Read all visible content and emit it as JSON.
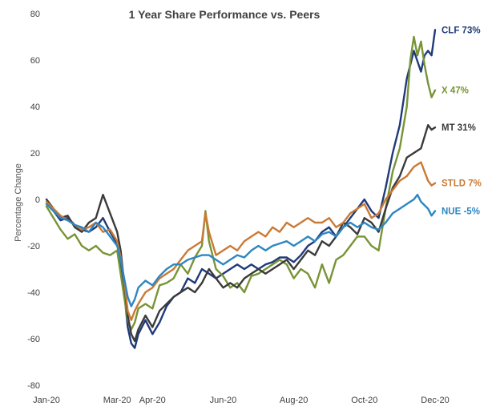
{
  "chart_data": {
    "type": "line",
    "title": "1 Year Share Performance vs. Peers",
    "xlabel": "",
    "ylabel": "Percentage Change",
    "ylim": [
      -80,
      80
    ],
    "yticks": [
      -80,
      -60,
      -40,
      -20,
      0,
      20,
      40,
      60,
      80
    ],
    "xlim": [
      0,
      11
    ],
    "xtick_labels": [
      {
        "x": 0,
        "label": "Jan-20"
      },
      {
        "x": 2,
        "label": "Mar-20"
      },
      {
        "x": 3,
        "label": "Apr-20"
      },
      {
        "x": 5,
        "label": "Jun-20"
      },
      {
        "x": 7,
        "label": "Aug-20"
      },
      {
        "x": 9,
        "label": "Oct-20"
      },
      {
        "x": 11,
        "label": "Dec-20"
      }
    ],
    "grid": false,
    "legend": "none",
    "series": [
      {
        "name": "CLF",
        "end_label": "CLF 73%",
        "color": "#1f3a7a",
        "points": [
          [
            0,
            -2
          ],
          [
            0.2,
            -5
          ],
          [
            0.4,
            -9
          ],
          [
            0.6,
            -8
          ],
          [
            0.8,
            -11
          ],
          [
            1.0,
            -13
          ],
          [
            1.2,
            -14
          ],
          [
            1.4,
            -12
          ],
          [
            1.6,
            -8
          ],
          [
            1.8,
            -14
          ],
          [
            2.0,
            -19
          ],
          [
            2.1,
            -28
          ],
          [
            2.2,
            -40
          ],
          [
            2.3,
            -55
          ],
          [
            2.4,
            -62
          ],
          [
            2.5,
            -64
          ],
          [
            2.6,
            -58
          ],
          [
            2.8,
            -52
          ],
          [
            3.0,
            -58
          ],
          [
            3.2,
            -53
          ],
          [
            3.4,
            -46
          ],
          [
            3.6,
            -42
          ],
          [
            3.8,
            -40
          ],
          [
            4.0,
            -34
          ],
          [
            4.2,
            -36
          ],
          [
            4.4,
            -30
          ],
          [
            4.6,
            -32
          ],
          [
            4.8,
            -34
          ],
          [
            5.0,
            -32
          ],
          [
            5.2,
            -30
          ],
          [
            5.4,
            -28
          ],
          [
            5.6,
            -30
          ],
          [
            5.8,
            -28
          ],
          [
            6.0,
            -30
          ],
          [
            6.2,
            -28
          ],
          [
            6.4,
            -27
          ],
          [
            6.6,
            -25
          ],
          [
            6.8,
            -25
          ],
          [
            7.0,
            -27
          ],
          [
            7.2,
            -24
          ],
          [
            7.4,
            -20
          ],
          [
            7.6,
            -18
          ],
          [
            7.8,
            -14
          ],
          [
            8.0,
            -12
          ],
          [
            8.2,
            -16
          ],
          [
            8.4,
            -12
          ],
          [
            8.6,
            -8
          ],
          [
            8.8,
            -4
          ],
          [
            9.0,
            0
          ],
          [
            9.2,
            -5
          ],
          [
            9.4,
            -8
          ],
          [
            9.6,
            5
          ],
          [
            9.8,
            20
          ],
          [
            10.0,
            32
          ],
          [
            10.2,
            52
          ],
          [
            10.4,
            64
          ],
          [
            10.6,
            55
          ],
          [
            10.7,
            62
          ],
          [
            10.8,
            64
          ],
          [
            10.9,
            62
          ],
          [
            11.0,
            73
          ]
        ]
      },
      {
        "name": "X",
        "end_label": "X 47%",
        "color": "#789435",
        "points": [
          [
            0,
            -3
          ],
          [
            0.2,
            -8
          ],
          [
            0.4,
            -13
          ],
          [
            0.6,
            -17
          ],
          [
            0.8,
            -15
          ],
          [
            1.0,
            -20
          ],
          [
            1.2,
            -22
          ],
          [
            1.4,
            -20
          ],
          [
            1.6,
            -23
          ],
          [
            1.8,
            -24
          ],
          [
            2.0,
            -22
          ],
          [
            2.1,
            -32
          ],
          [
            2.2,
            -42
          ],
          [
            2.3,
            -52
          ],
          [
            2.4,
            -56
          ],
          [
            2.5,
            -53
          ],
          [
            2.6,
            -47
          ],
          [
            2.8,
            -45
          ],
          [
            3.0,
            -47
          ],
          [
            3.2,
            -37
          ],
          [
            3.4,
            -36
          ],
          [
            3.6,
            -34
          ],
          [
            3.8,
            -28
          ],
          [
            4.0,
            -32
          ],
          [
            4.2,
            -25
          ],
          [
            4.4,
            -20
          ],
          [
            4.5,
            -5
          ],
          [
            4.6,
            -18
          ],
          [
            4.8,
            -30
          ],
          [
            5.0,
            -33
          ],
          [
            5.2,
            -38
          ],
          [
            5.4,
            -36
          ],
          [
            5.6,
            -40
          ],
          [
            5.8,
            -33
          ],
          [
            6.0,
            -32
          ],
          [
            6.2,
            -30
          ],
          [
            6.4,
            -28
          ],
          [
            6.6,
            -26
          ],
          [
            6.8,
            -28
          ],
          [
            7.0,
            -34
          ],
          [
            7.2,
            -30
          ],
          [
            7.4,
            -32
          ],
          [
            7.6,
            -38
          ],
          [
            7.8,
            -28
          ],
          [
            8.0,
            -36
          ],
          [
            8.2,
            -26
          ],
          [
            8.4,
            -24
          ],
          [
            8.6,
            -20
          ],
          [
            8.8,
            -16
          ],
          [
            9.0,
            -16
          ],
          [
            9.2,
            -20
          ],
          [
            9.4,
            -22
          ],
          [
            9.6,
            -4
          ],
          [
            9.8,
            12
          ],
          [
            10.0,
            22
          ],
          [
            10.2,
            40
          ],
          [
            10.3,
            60
          ],
          [
            10.4,
            70
          ],
          [
            10.5,
            62
          ],
          [
            10.6,
            68
          ],
          [
            10.7,
            58
          ],
          [
            10.8,
            50
          ],
          [
            10.9,
            44
          ],
          [
            11.0,
            47
          ]
        ]
      },
      {
        "name": "MT",
        "end_label": "MT 31%",
        "color": "#3a3a3a",
        "points": [
          [
            0,
            0
          ],
          [
            0.2,
            -4
          ],
          [
            0.4,
            -8
          ],
          [
            0.6,
            -7
          ],
          [
            0.8,
            -12
          ],
          [
            1.0,
            -14
          ],
          [
            1.2,
            -10
          ],
          [
            1.4,
            -8
          ],
          [
            1.6,
            2
          ],
          [
            1.8,
            -6
          ],
          [
            2.0,
            -14
          ],
          [
            2.1,
            -22
          ],
          [
            2.2,
            -36
          ],
          [
            2.3,
            -50
          ],
          [
            2.4,
            -58
          ],
          [
            2.5,
            -61
          ],
          [
            2.6,
            -56
          ],
          [
            2.8,
            -50
          ],
          [
            3.0,
            -55
          ],
          [
            3.2,
            -48
          ],
          [
            3.4,
            -45
          ],
          [
            3.6,
            -42
          ],
          [
            3.8,
            -40
          ],
          [
            4.0,
            -38
          ],
          [
            4.2,
            -40
          ],
          [
            4.4,
            -36
          ],
          [
            4.6,
            -30
          ],
          [
            4.8,
            -34
          ],
          [
            5.0,
            -38
          ],
          [
            5.2,
            -36
          ],
          [
            5.4,
            -38
          ],
          [
            5.6,
            -34
          ],
          [
            5.8,
            -32
          ],
          [
            6.0,
            -30
          ],
          [
            6.2,
            -32
          ],
          [
            6.4,
            -30
          ],
          [
            6.6,
            -28
          ],
          [
            6.8,
            -26
          ],
          [
            7.0,
            -30
          ],
          [
            7.2,
            -26
          ],
          [
            7.4,
            -22
          ],
          [
            7.6,
            -24
          ],
          [
            7.8,
            -18
          ],
          [
            8.0,
            -20
          ],
          [
            8.2,
            -16
          ],
          [
            8.4,
            -10
          ],
          [
            8.6,
            -12
          ],
          [
            8.8,
            -15
          ],
          [
            9.0,
            -8
          ],
          [
            9.2,
            -10
          ],
          [
            9.4,
            -14
          ],
          [
            9.6,
            -4
          ],
          [
            9.8,
            5
          ],
          [
            10.0,
            10
          ],
          [
            10.2,
            18
          ],
          [
            10.4,
            20
          ],
          [
            10.6,
            22
          ],
          [
            10.8,
            32
          ],
          [
            10.9,
            30
          ],
          [
            11.0,
            31
          ]
        ]
      },
      {
        "name": "STLD",
        "end_label": "STLD 7%",
        "color": "#c97a35",
        "points": [
          [
            0,
            -1
          ],
          [
            0.2,
            -4
          ],
          [
            0.4,
            -7
          ],
          [
            0.6,
            -9
          ],
          [
            0.8,
            -11
          ],
          [
            1.0,
            -13
          ],
          [
            1.2,
            -12
          ],
          [
            1.4,
            -10
          ],
          [
            1.6,
            -14
          ],
          [
            1.8,
            -13
          ],
          [
            2.0,
            -18
          ],
          [
            2.1,
            -25
          ],
          [
            2.2,
            -35
          ],
          [
            2.3,
            -48
          ],
          [
            2.4,
            -52
          ],
          [
            2.5,
            -48
          ],
          [
            2.6,
            -45
          ],
          [
            2.8,
            -40
          ],
          [
            3.0,
            -38
          ],
          [
            3.2,
            -34
          ],
          [
            3.4,
            -32
          ],
          [
            3.6,
            -30
          ],
          [
            3.8,
            -26
          ],
          [
            4.0,
            -22
          ],
          [
            4.2,
            -20
          ],
          [
            4.4,
            -18
          ],
          [
            4.5,
            -6
          ],
          [
            4.6,
            -14
          ],
          [
            4.8,
            -24
          ],
          [
            5.0,
            -22
          ],
          [
            5.2,
            -20
          ],
          [
            5.4,
            -22
          ],
          [
            5.6,
            -18
          ],
          [
            5.8,
            -16
          ],
          [
            6.0,
            -14
          ],
          [
            6.2,
            -16
          ],
          [
            6.4,
            -12
          ],
          [
            6.6,
            -14
          ],
          [
            6.8,
            -10
          ],
          [
            7.0,
            -12
          ],
          [
            7.2,
            -10
          ],
          [
            7.4,
            -8
          ],
          [
            7.6,
            -10
          ],
          [
            7.8,
            -10
          ],
          [
            8.0,
            -8
          ],
          [
            8.2,
            -12
          ],
          [
            8.4,
            -10
          ],
          [
            8.6,
            -6
          ],
          [
            8.8,
            -4
          ],
          [
            9.0,
            -2
          ],
          [
            9.2,
            -8
          ],
          [
            9.4,
            -6
          ],
          [
            9.6,
            0
          ],
          [
            9.8,
            4
          ],
          [
            10.0,
            8
          ],
          [
            10.2,
            10
          ],
          [
            10.4,
            14
          ],
          [
            10.6,
            16
          ],
          [
            10.7,
            12
          ],
          [
            10.8,
            8
          ],
          [
            10.9,
            6
          ],
          [
            11.0,
            7
          ]
        ]
      },
      {
        "name": "NUE",
        "end_label": "NUE -5%",
        "color": "#2e86c1",
        "points": [
          [
            0,
            -2
          ],
          [
            0.2,
            -5
          ],
          [
            0.4,
            -8
          ],
          [
            0.6,
            -9
          ],
          [
            0.8,
            -11
          ],
          [
            1.0,
            -12
          ],
          [
            1.2,
            -14
          ],
          [
            1.4,
            -10
          ],
          [
            1.6,
            -12
          ],
          [
            1.8,
            -16
          ],
          [
            2.0,
            -20
          ],
          [
            2.1,
            -26
          ],
          [
            2.2,
            -34
          ],
          [
            2.3,
            -42
          ],
          [
            2.4,
            -46
          ],
          [
            2.5,
            -43
          ],
          [
            2.6,
            -38
          ],
          [
            2.8,
            -35
          ],
          [
            3.0,
            -37
          ],
          [
            3.2,
            -33
          ],
          [
            3.4,
            -30
          ],
          [
            3.6,
            -28
          ],
          [
            3.8,
            -28
          ],
          [
            4.0,
            -26
          ],
          [
            4.2,
            -25
          ],
          [
            4.4,
            -24
          ],
          [
            4.6,
            -24
          ],
          [
            4.8,
            -26
          ],
          [
            5.0,
            -28
          ],
          [
            5.2,
            -26
          ],
          [
            5.4,
            -24
          ],
          [
            5.6,
            -25
          ],
          [
            5.8,
            -22
          ],
          [
            6.0,
            -20
          ],
          [
            6.2,
            -22
          ],
          [
            6.4,
            -20
          ],
          [
            6.6,
            -19
          ],
          [
            6.8,
            -18
          ],
          [
            7.0,
            -20
          ],
          [
            7.2,
            -18
          ],
          [
            7.4,
            -16
          ],
          [
            7.6,
            -18
          ],
          [
            7.8,
            -15
          ],
          [
            8.0,
            -14
          ],
          [
            8.2,
            -16
          ],
          [
            8.4,
            -12
          ],
          [
            8.6,
            -10
          ],
          [
            8.8,
            -12
          ],
          [
            9.0,
            -10
          ],
          [
            9.2,
            -12
          ],
          [
            9.4,
            -13
          ],
          [
            9.6,
            -10
          ],
          [
            9.8,
            -6
          ],
          [
            10.0,
            -4
          ],
          [
            10.2,
            -2
          ],
          [
            10.4,
            0
          ],
          [
            10.5,
            2
          ],
          [
            10.6,
            -1
          ],
          [
            10.8,
            -4
          ],
          [
            10.9,
            -7
          ],
          [
            11.0,
            -5
          ]
        ]
      }
    ]
  }
}
